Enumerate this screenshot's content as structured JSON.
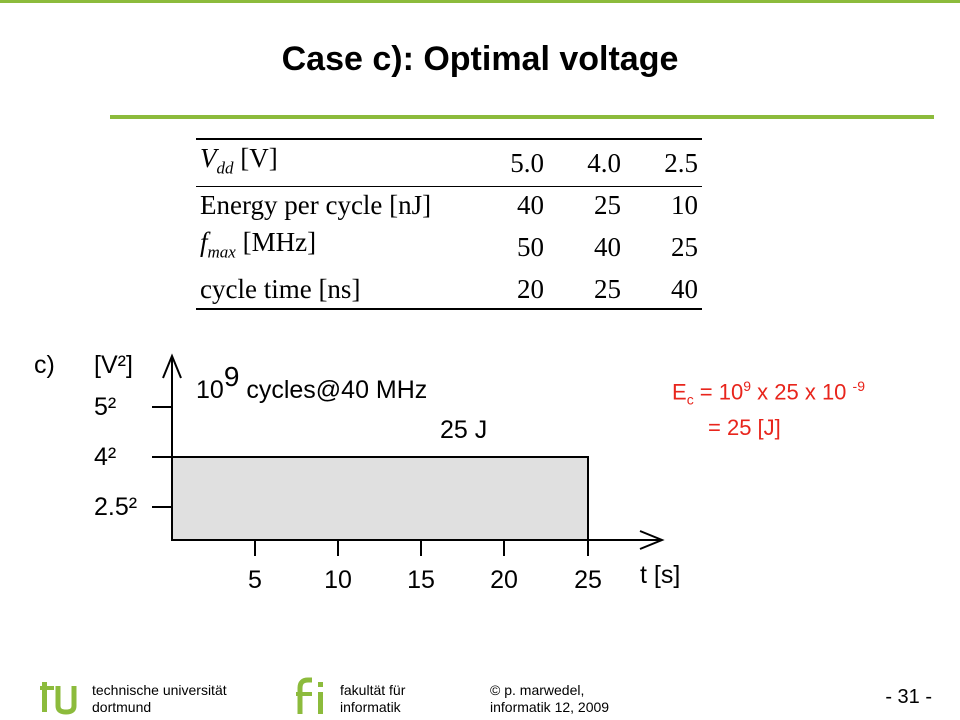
{
  "title": "Case c): Optimal voltage",
  "table": {
    "header": {
      "label_main": "V",
      "label_sub": "dd",
      "label_unit": " [V]",
      "values": [
        "5.0",
        "4.0",
        "2.5"
      ]
    },
    "rows": [
      {
        "label": "Energy per cycle [nJ]",
        "values": [
          "40",
          "25",
          "10"
        ]
      },
      {
        "label_main": "f",
        "label_sub": "max",
        "label_unit": " [MHz]",
        "values": [
          "50",
          "40",
          "25"
        ]
      },
      {
        "label": "cycle time [ns]",
        "values": [
          "20",
          "25",
          "40"
        ]
      }
    ]
  },
  "plot": {
    "case_label": "c)",
    "y_unit": "[V²]",
    "y_ticks": [
      "5²",
      "4²",
      "2.5²"
    ],
    "x_ticks": [
      "5",
      "10",
      "15",
      "20",
      "25"
    ],
    "x_unit": "t [s]",
    "annotation_base": "10",
    "annotation_exp": "9",
    "annotation_rest": " cycles@40 MHz",
    "energy_label": "25 J"
  },
  "formula": {
    "line1_e": "E",
    "line1_sub": "c",
    "line1_mid": " = 10",
    "line1_exp1": "9",
    "line1_mid2": " x 25 x 10 ",
    "line1_exp2": "-9",
    "line2": "= 25 [J]"
  },
  "footer": {
    "uni_line1": "technische universität",
    "uni_line2": "dortmund",
    "fak_line1": "fakultät für",
    "fak_line2": "informatik",
    "author_line1": "p. marwedel,",
    "author_line2": "informatik 12,  2009",
    "copyright_symbol": "©",
    "page_number": "- 31 -"
  },
  "colors": {
    "accent_green": "#8cbb3c",
    "formula_red": "#e8251c",
    "logo_blue": "#1f5fa6",
    "box_fill": "#e0e0e0"
  }
}
